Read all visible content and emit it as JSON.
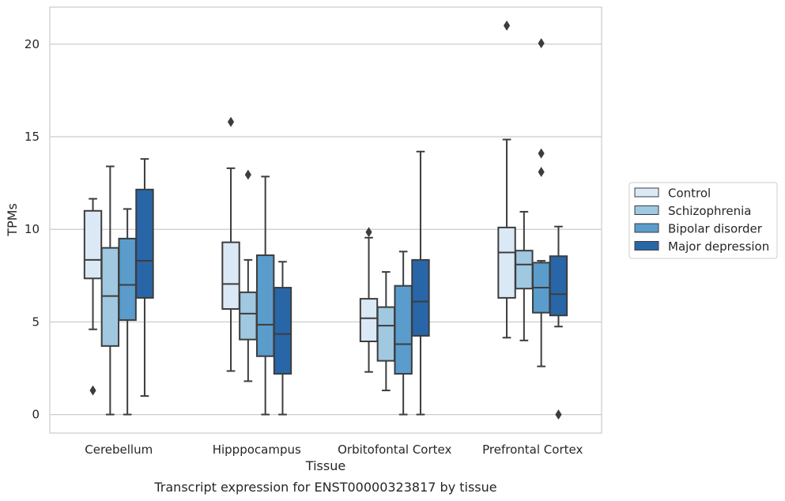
{
  "chart_data": {
    "type": "box",
    "title": "Transcript expression for ENST00000323817 by tissue",
    "xlabel": "Tissue",
    "ylabel": "TPMs",
    "ylim": [
      -1.0,
      22.0
    ],
    "yticks": [
      0,
      5,
      10,
      15,
      20
    ],
    "grid": true,
    "legend_position": "right",
    "categories": [
      "Cerebellum",
      "Hipppocampus",
      "Orbitofontal Cortex",
      "Prefrontal Cortex"
    ],
    "series": [
      {
        "name": "Control",
        "color": "#dbe9f6",
        "boxes": [
          {
            "whislo": 4.6,
            "q1": 7.35,
            "med": 8.35,
            "q3": 11.0,
            "whishi": 11.65,
            "fliers": [
              1.3
            ]
          },
          {
            "whislo": 2.35,
            "q1": 5.7,
            "med": 7.05,
            "q3": 9.3,
            "whishi": 13.3,
            "fliers": [
              15.8
            ]
          },
          {
            "whislo": 2.3,
            "q1": 3.95,
            "med": 5.2,
            "q3": 6.25,
            "whishi": 9.55,
            "fliers": [
              9.85
            ]
          },
          {
            "whislo": 4.15,
            "q1": 6.3,
            "med": 8.75,
            "q3": 10.1,
            "whishi": 14.85,
            "fliers": [
              21.0
            ]
          }
        ]
      },
      {
        "name": "Schizophrenia",
        "color": "#a0c8e0",
        "boxes": [
          {
            "whislo": 0.0,
            "q1": 3.7,
            "med": 6.4,
            "q3": 9.0,
            "whishi": 13.4,
            "fliers": []
          },
          {
            "whislo": 1.8,
            "q1": 4.05,
            "med": 5.45,
            "q3": 6.6,
            "whishi": 8.35,
            "fliers": [
              12.95
            ]
          },
          {
            "whislo": 1.3,
            "q1": 2.9,
            "med": 4.8,
            "q3": 5.8,
            "whishi": 7.7,
            "fliers": []
          },
          {
            "whislo": 4.0,
            "q1": 6.8,
            "med": 8.1,
            "q3": 8.85,
            "whishi": 10.95,
            "fliers": []
          }
        ]
      },
      {
        "name": "Bipolar disorder",
        "color": "#5a9ccc",
        "boxes": [
          {
            "whislo": 0.0,
            "q1": 5.1,
            "med": 7.0,
            "q3": 9.5,
            "whishi": 11.1,
            "fliers": []
          },
          {
            "whislo": 0.0,
            "q1": 3.15,
            "med": 4.85,
            "q3": 8.6,
            "whishi": 12.85,
            "fliers": []
          },
          {
            "whislo": 0.0,
            "q1": 2.2,
            "med": 3.8,
            "q3": 6.95,
            "whishi": 8.8,
            "fliers": []
          },
          {
            "whislo": 2.6,
            "q1": 5.5,
            "med": 6.85,
            "q3": 8.2,
            "whishi": 8.3,
            "fliers": [
              13.1,
              14.1,
              20.05
            ]
          }
        ]
      },
      {
        "name": "Major depression",
        "color": "#2866a8",
        "boxes": [
          {
            "whislo": 1.0,
            "q1": 6.3,
            "med": 8.3,
            "q3": 12.15,
            "whishi": 13.8,
            "fliers": []
          },
          {
            "whislo": 0.0,
            "q1": 2.2,
            "med": 4.35,
            "q3": 6.85,
            "whishi": 8.25,
            "fliers": []
          },
          {
            "whislo": 0.0,
            "q1": 4.25,
            "med": 6.1,
            "q3": 8.35,
            "whishi": 14.2,
            "fliers": []
          },
          {
            "whislo": 4.75,
            "q1": 5.35,
            "med": 6.5,
            "q3": 8.55,
            "whishi": 10.15,
            "fliers": [
              0.0
            ]
          }
        ]
      }
    ]
  }
}
